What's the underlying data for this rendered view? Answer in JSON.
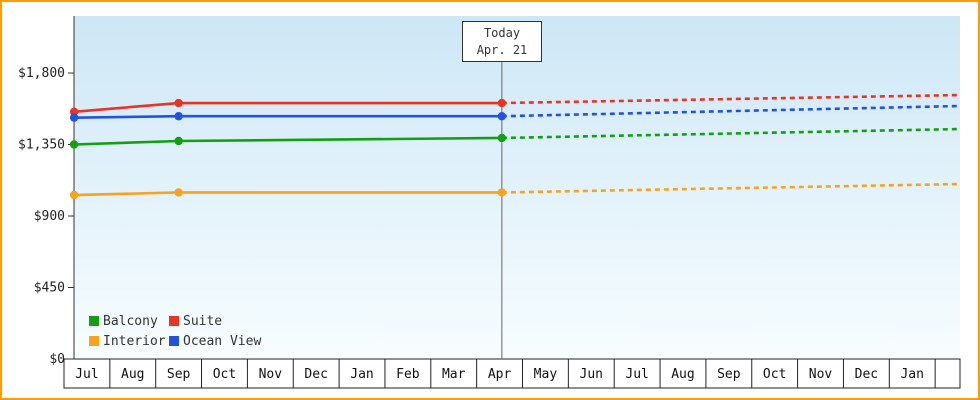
{
  "frame": {
    "border_color": "#ff9d00",
    "background": "#ffffff"
  },
  "chart_data": {
    "type": "line",
    "title": "",
    "x_unit": "months from first Jul tick",
    "x_tick_labels": [
      "Jul",
      "Aug",
      "Sep",
      "Oct",
      "Nov",
      "Dec",
      "Jan",
      "Feb",
      "Mar",
      "Apr",
      "May",
      "Jun",
      "Jul",
      "Aug",
      "Sep",
      "Oct",
      "Nov",
      "Dec",
      "Jan"
    ],
    "y_tick_labels": [
      "$0",
      "$450",
      "$900",
      "$1,350",
      "$1,800"
    ],
    "y_tick_values": [
      0,
      450,
      900,
      1350,
      1800
    ],
    "ylim": [
      0,
      2160
    ],
    "grid": false,
    "legend_position": "bottom-left",
    "plot_background": {
      "top": "#cde7f6",
      "bottom": "#f8fdff"
    },
    "today_marker": {
      "line1": "Today",
      "line2": "Apr. 21",
      "x_months": 9.55
    },
    "series": [
      {
        "name": "Balcony",
        "color": "#12a012",
        "history": [
          {
            "x": 0.22,
            "price": 1350
          },
          {
            "x": 2.5,
            "price": 1372
          },
          {
            "x": 9.55,
            "price": 1391
          }
        ],
        "forecast_end_price": 1447,
        "style_history": "solid",
        "style_forecast": "dashed"
      },
      {
        "name": "Suite",
        "color": "#ea3423",
        "history": [
          {
            "x": 0.22,
            "price": 1556
          },
          {
            "x": 2.5,
            "price": 1611
          },
          {
            "x": 9.55,
            "price": 1611
          }
        ],
        "forecast_end_price": 1661,
        "style_history": "solid",
        "style_forecast": "dashed"
      },
      {
        "name": "Interior",
        "color": "#f7a41c",
        "history": [
          {
            "x": 0.22,
            "price": 1032
          },
          {
            "x": 2.5,
            "price": 1048
          },
          {
            "x": 9.55,
            "price": 1048
          }
        ],
        "forecast_end_price": 1101,
        "style_history": "solid",
        "style_forecast": "dashed"
      },
      {
        "name": "Ocean View",
        "color": "#2253e0",
        "history": [
          {
            "x": 0.22,
            "price": 1519
          },
          {
            "x": 2.5,
            "price": 1528
          },
          {
            "x": 9.55,
            "price": 1528
          }
        ],
        "forecast_end_price": 1592,
        "style_history": "solid",
        "style_forecast": "dashed"
      }
    ],
    "legend": {
      "rows": [
        [
          "Balcony",
          "Suite"
        ],
        [
          "Interior",
          "Ocean View"
        ]
      ]
    }
  }
}
